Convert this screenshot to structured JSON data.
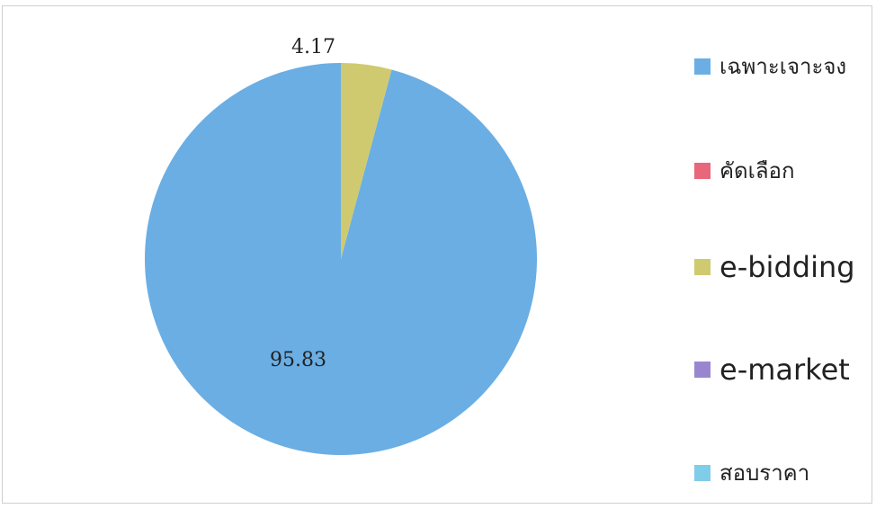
{
  "chart_data": {
    "type": "pie",
    "slices": [
      {
        "label": "เฉพาะเจาะจง",
        "value": 95.83,
        "color": "#6aaee4",
        "display": "95.83"
      },
      {
        "label": "คัดเลือก",
        "value": 0,
        "color": "#e8677b",
        "display": ""
      },
      {
        "label": "e-bidding",
        "value": 4.17,
        "color": "#cfca6f",
        "display": "4.17"
      },
      {
        "label": "e-market",
        "value": 0,
        "color": "#9a86d0",
        "display": ""
      },
      {
        "label": "สอบราคา",
        "value": 0,
        "color": "#7fcde8",
        "display": ""
      }
    ],
    "legend_position": "right",
    "start_angle_deg": 0,
    "direction": "counterclockwise"
  }
}
